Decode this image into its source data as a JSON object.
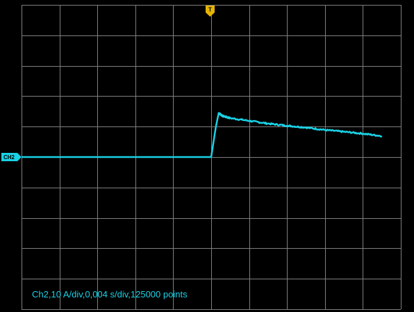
{
  "scope": {
    "trigger_marker": "T",
    "channel_marker": "CH2",
    "info_text": "Ch2,10 A/div,0,004 s/div,125000 points",
    "colors": {
      "background": "#000000",
      "grid": "#7f7f7f",
      "trace": "#19d2e6",
      "trigger_marker": "#e6b400",
      "channel_marker": "#19d2e6"
    }
  },
  "chart_data": {
    "type": "line",
    "title": "",
    "xlabel": "",
    "ylabel": "",
    "x_unit": "s",
    "y_unit": "A",
    "divisions": {
      "x": 10,
      "y": 10
    },
    "scale": {
      "volts_per_div_equivalent": 10,
      "seconds_per_div": 0.004
    },
    "xlim": [
      -0.02,
      0.02
    ],
    "ylim": [
      -50,
      50
    ],
    "grid": true,
    "series": [
      {
        "points": [
          [
            -0.02,
            0
          ],
          [
            0.0,
            0
          ],
          [
            0.0005,
            10
          ],
          [
            0.0008,
            14.5
          ],
          [
            0.0012,
            13.5
          ],
          [
            0.002,
            12.8
          ],
          [
            0.004,
            11.9
          ],
          [
            0.006,
            11.0
          ],
          [
            0.008,
            10.3
          ],
          [
            0.01,
            9.7
          ],
          [
            0.012,
            8.9
          ],
          [
            0.014,
            8.3
          ],
          [
            0.016,
            7.7
          ],
          [
            0.018,
            6.9
          ]
        ]
      }
    ]
  }
}
